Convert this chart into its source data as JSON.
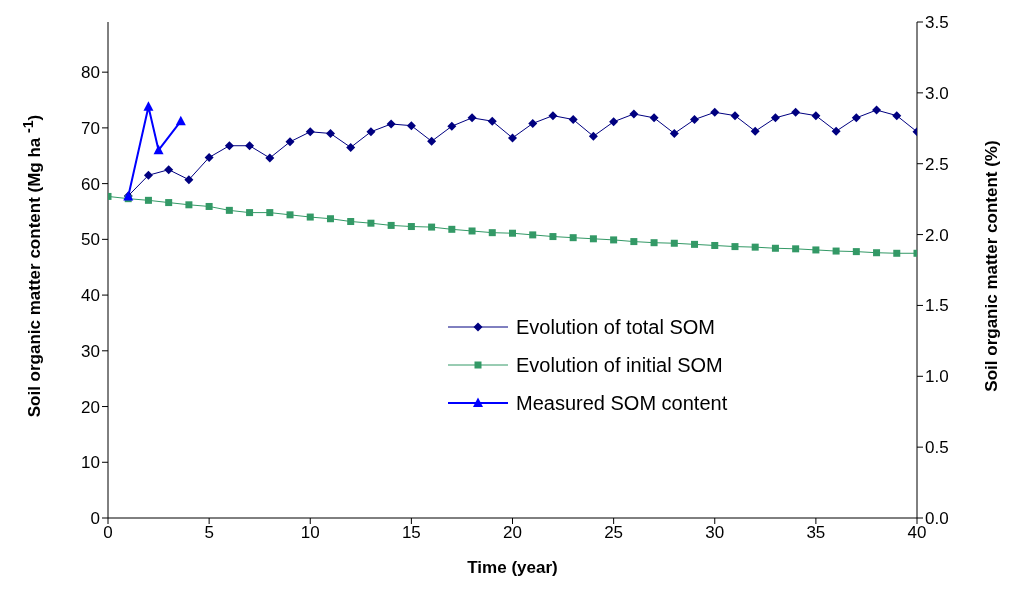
{
  "chart_data": {
    "type": "line",
    "xlabel": "Time (year)",
    "ylabel": "Soil organic matter content (Mg ha $^{-1}$)",
    "y2label": "Soil organic matter content (%)",
    "xlim": [
      0,
      40
    ],
    "xticks": [
      0,
      5,
      10,
      15,
      20,
      25,
      30,
      35,
      40
    ],
    "ylim": [
      0,
      89
    ],
    "yticks": [
      0,
      10,
      20,
      30,
      40,
      50,
      60,
      70,
      80
    ],
    "y2lim": [
      0,
      3.5
    ],
    "y2ticks": [
      {
        "value": 0,
        "label": "0.0"
      },
      {
        "value": 0.5,
        "label": "0.5"
      },
      {
        "value": 1,
        "label": "1.0"
      },
      {
        "value": 1.5,
        "label": "1.5"
      },
      {
        "value": 2,
        "label": "2.0"
      },
      {
        "value": 2.5,
        "label": "2.5"
      },
      {
        "value": 3,
        "label": "3.0"
      },
      {
        "value": 3.5,
        "label": "3.5"
      }
    ],
    "grid": false,
    "legend": "center",
    "series": [
      {
        "name": "Evolution of total SOM",
        "color": "#000080",
        "marker": "diamond",
        "x": [
          1,
          2,
          3,
          4,
          5,
          6,
          7,
          8,
          9,
          10,
          11,
          12,
          13,
          14,
          15,
          16,
          17,
          18,
          19,
          20,
          21,
          22,
          23,
          24,
          25,
          26,
          27,
          28,
          29,
          30,
          31,
          32,
          33,
          34,
          35,
          36,
          37,
          38,
          39,
          40
        ],
        "values": [
          57.8,
          61.5,
          62.5,
          60.7,
          64.7,
          66.8,
          66.8,
          64.6,
          67.5,
          69.3,
          69,
          66.5,
          69.3,
          70.7,
          70.4,
          67.6,
          70.3,
          71.8,
          71.2,
          68.2,
          70.8,
          72.2,
          71.5,
          68.5,
          71.1,
          72.5,
          71.8,
          69,
          71.5,
          72.8,
          72.2,
          69.4,
          71.8,
          72.8,
          72.2,
          69.4,
          71.8,
          73.2,
          72.2,
          69.3
        ]
      },
      {
        "name": "Evolution of initial SOM",
        "color": "#339966",
        "marker": "square",
        "x": [
          0,
          1,
          2,
          3,
          4,
          5,
          6,
          7,
          8,
          9,
          10,
          11,
          12,
          13,
          14,
          15,
          16,
          17,
          18,
          19,
          20,
          21,
          22,
          23,
          24,
          25,
          26,
          27,
          28,
          29,
          30,
          31,
          32,
          33,
          34,
          35,
          36,
          37,
          38,
          39,
          40
        ],
        "values": [
          57.7,
          57.3,
          57,
          56.6,
          56.2,
          55.9,
          55.2,
          54.8,
          54.8,
          54.4,
          54,
          53.7,
          53.2,
          52.9,
          52.5,
          52.3,
          52.2,
          51.8,
          51.5,
          51.2,
          51.1,
          50.8,
          50.5,
          50.3,
          50.1,
          49.9,
          49.6,
          49.4,
          49.3,
          49.1,
          48.9,
          48.7,
          48.6,
          48.4,
          48.3,
          48.1,
          47.9,
          47.8,
          47.6,
          47.5,
          47.5
        ]
      },
      {
        "name": "Measured SOM content",
        "color": "#0000ff",
        "marker": "triangle",
        "x": [
          1,
          2,
          2.5,
          3.6
        ],
        "values": [
          57.7,
          73.8,
          66,
          71.2
        ]
      }
    ]
  }
}
